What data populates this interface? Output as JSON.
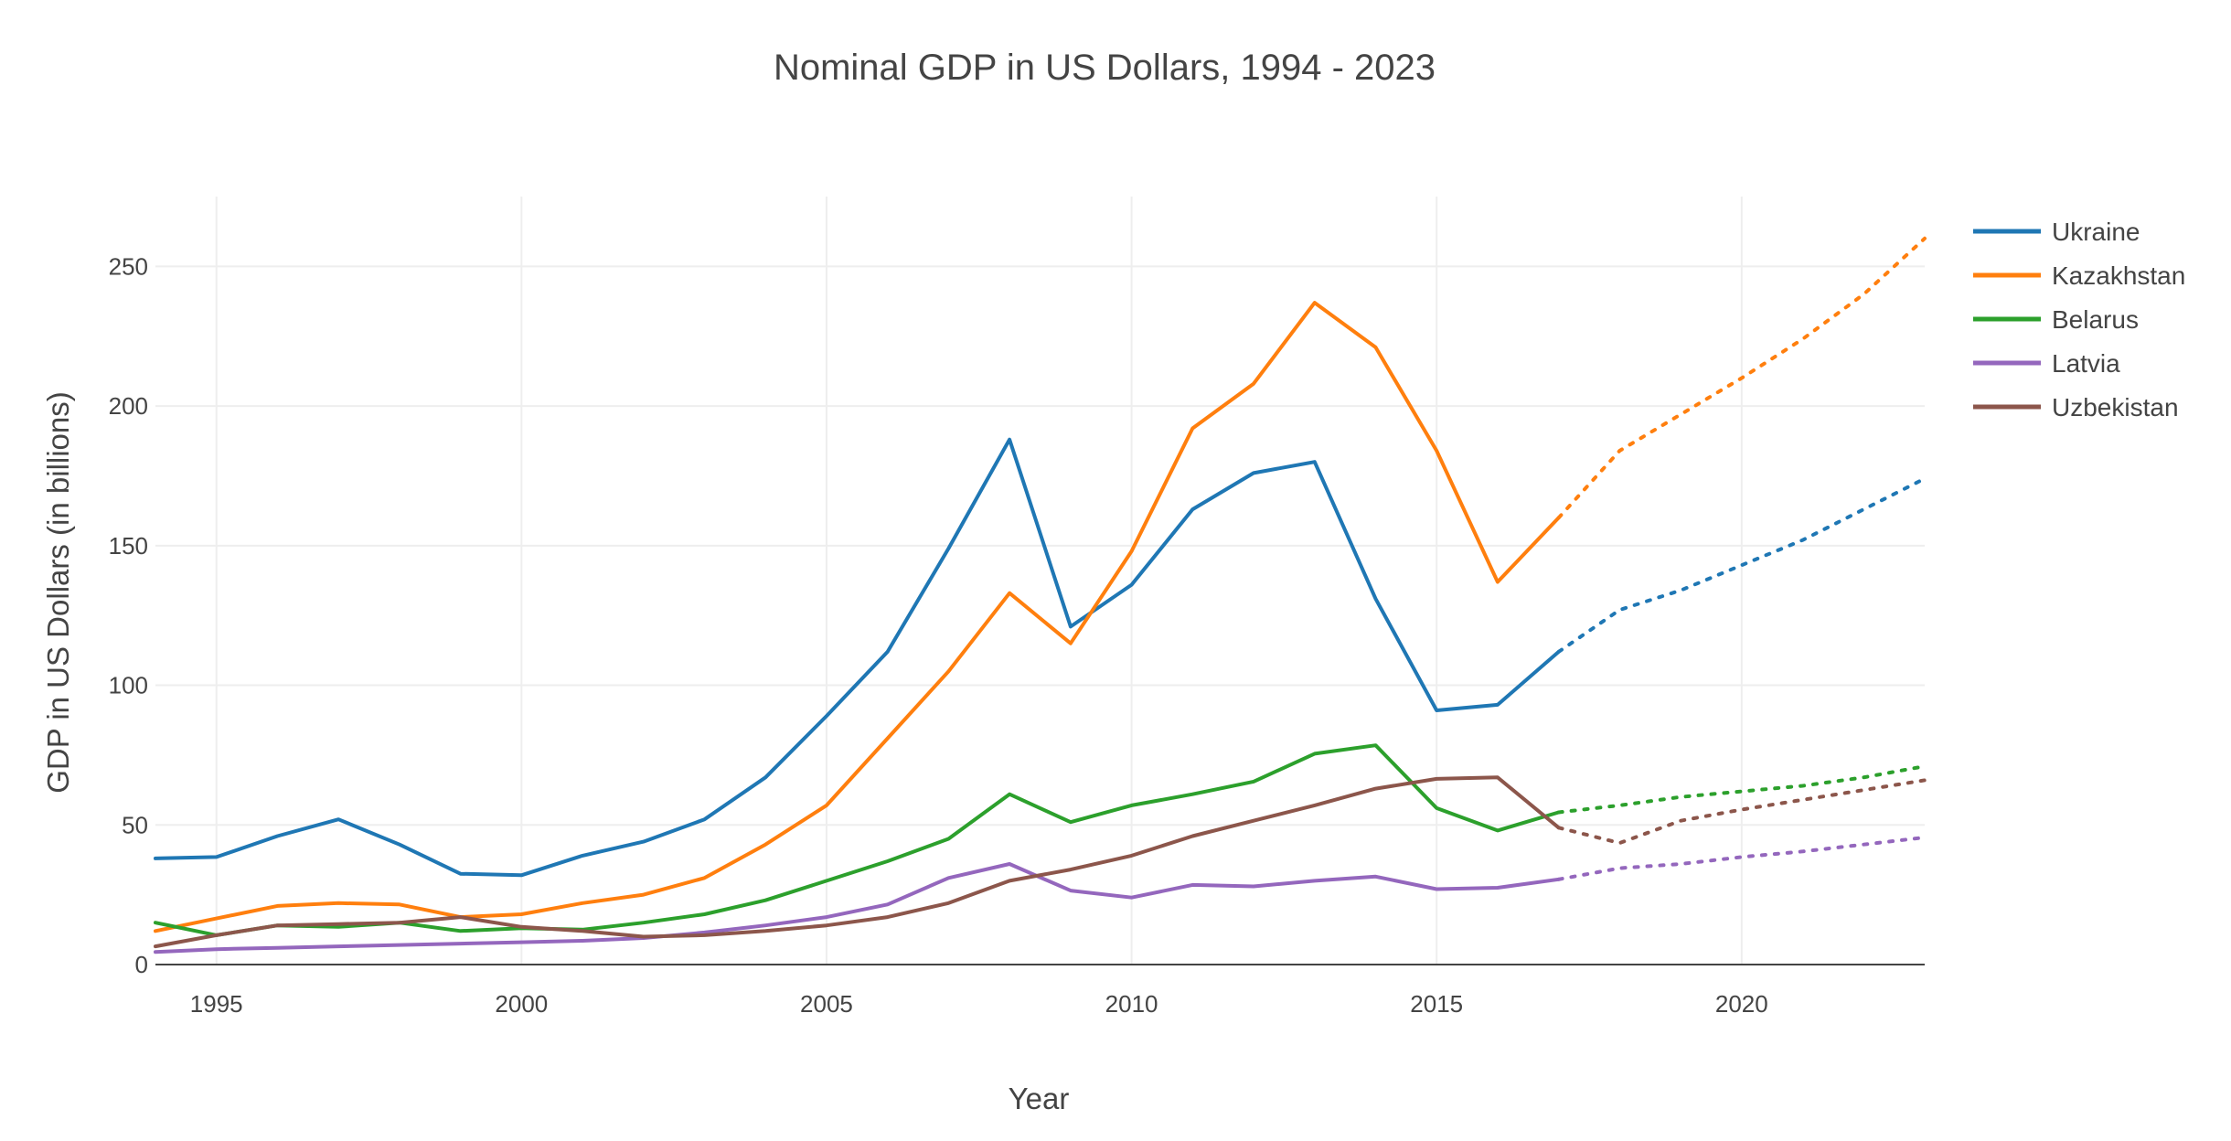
{
  "chart_data": {
    "type": "line",
    "title": "Nominal GDP in US Dollars, 1994 - 2023",
    "xlabel": "Year",
    "ylabel": "GDP in US Dollars (in billions)",
    "xlim": [
      1994,
      2023
    ],
    "ylim": [
      0,
      275
    ],
    "x_ticks": [
      1995,
      2000,
      2005,
      2010,
      2015,
      2020
    ],
    "y_ticks": [
      0,
      50,
      100,
      150,
      200,
      250
    ],
    "grid": true,
    "legend_position": "top-right",
    "projection_note": "solid 1994-2017, dotted 2017-2023",
    "projection_start": 2017,
    "x": [
      1994,
      1995,
      1996,
      1997,
      1998,
      1999,
      2000,
      2001,
      2002,
      2003,
      2004,
      2005,
      2006,
      2007,
      2008,
      2009,
      2010,
      2011,
      2012,
      2013,
      2014,
      2015,
      2016,
      2017,
      2018,
      2019,
      2020,
      2021,
      2022,
      2023
    ],
    "series": [
      {
        "name": "Ukraine",
        "color": "#1f77b4",
        "values": [
          38,
          38.5,
          46,
          52,
          43,
          32.5,
          32,
          39,
          44,
          52,
          67,
          89,
          112,
          149,
          188,
          121,
          136,
          163,
          176,
          180,
          131,
          91,
          93,
          112,
          127,
          134,
          143,
          152,
          163,
          174
        ]
      },
      {
        "name": "Kazakhstan",
        "color": "#ff7f0e",
        "values": [
          12,
          16.5,
          21,
          22,
          21.5,
          17,
          18,
          22,
          25,
          31,
          43,
          57,
          81,
          105,
          133,
          115,
          148,
          192,
          208,
          237,
          221,
          184,
          137,
          160,
          184,
          197,
          210,
          224,
          240,
          260
        ]
      },
      {
        "name": "Belarus",
        "color": "#2ca02c",
        "values": [
          15,
          10.5,
          14,
          13.5,
          15,
          12,
          13,
          12.5,
          15,
          18,
          23,
          30,
          37,
          45,
          61,
          51,
          57,
          61,
          65.5,
          75.5,
          78.5,
          56,
          48,
          54.5,
          57,
          60,
          62,
          64,
          67,
          71
        ]
      },
      {
        "name": "Latvia",
        "color": "#9467bd",
        "values": [
          4.5,
          5.5,
          6,
          6.5,
          7,
          7.5,
          8,
          8.5,
          9.5,
          11.5,
          14,
          17,
          21.5,
          31,
          36,
          26.5,
          24,
          28.5,
          28,
          30,
          31.5,
          27,
          27.5,
          30.5,
          34.5,
          36,
          38.5,
          40.5,
          43,
          45.5
        ]
      },
      {
        "name": "Uzbekistan",
        "color": "#8c564b",
        "values": [
          6.5,
          10.5,
          14,
          14.5,
          15,
          17,
          13.5,
          12,
          10,
          10.5,
          12,
          14,
          17,
          22,
          30,
          34,
          39,
          46,
          51.5,
          57,
          63,
          66.5,
          67,
          49,
          43.5,
          51.5,
          55.5,
          59,
          62.5,
          66
        ]
      }
    ]
  }
}
